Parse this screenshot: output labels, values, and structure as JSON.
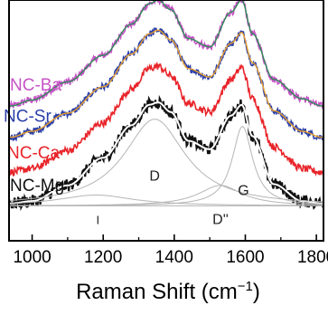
{
  "chart_data": {
    "type": "line",
    "title": "",
    "xlabel": "Raman Shift (cm−1)",
    "xlabel_parts": {
      "main": "Raman Shift (cm",
      "sup": "−1",
      "tail": ")"
    },
    "ylabel": "",
    "xlim": [
      935,
      1820
    ],
    "x_ticks": [
      1000,
      1200,
      1400,
      1600,
      1800
    ],
    "x_tick_labels": [
      "1000",
      "1200",
      "1400",
      "1600",
      "1800"
    ],
    "y_axis_visible": false,
    "grid": false,
    "legend": "none",
    "series": [
      {
        "name": "NC-Ba",
        "color": "#c653c6",
        "fit_color": "#2e8b57",
        "points": [
          [
            940,
            0.56
          ],
          [
            1000,
            0.585
          ],
          [
            1100,
            0.66
          ],
          [
            1200,
            0.77
          ],
          [
            1280,
            0.9
          ],
          [
            1330,
            0.985
          ],
          [
            1355,
            1.0
          ],
          [
            1390,
            0.96
          ],
          [
            1440,
            0.84
          ],
          [
            1500,
            0.805
          ],
          [
            1560,
            0.95
          ],
          [
            1590,
            1.0
          ],
          [
            1620,
            0.86
          ],
          [
            1680,
            0.67
          ],
          [
            1760,
            0.59
          ],
          [
            1815,
            0.56
          ]
        ]
      },
      {
        "name": "NC-Sr",
        "color": "#2b3fa8",
        "fit_color": "#e8a030",
        "points": [
          [
            940,
            0.43
          ],
          [
            1000,
            0.455
          ],
          [
            1100,
            0.53
          ],
          [
            1200,
            0.64
          ],
          [
            1280,
            0.775
          ],
          [
            1330,
            0.86
          ],
          [
            1355,
            0.875
          ],
          [
            1390,
            0.835
          ],
          [
            1440,
            0.715
          ],
          [
            1500,
            0.68
          ],
          [
            1560,
            0.82
          ],
          [
            1590,
            0.865
          ],
          [
            1620,
            0.74
          ],
          [
            1680,
            0.54
          ],
          [
            1760,
            0.455
          ],
          [
            1815,
            0.43
          ]
        ]
      },
      {
        "name": "NC-Ca",
        "color": "#e8242a",
        "fit_color": "",
        "points": [
          [
            940,
            0.285
          ],
          [
            1000,
            0.3
          ],
          [
            1100,
            0.375
          ],
          [
            1200,
            0.49
          ],
          [
            1280,
            0.63
          ],
          [
            1330,
            0.715
          ],
          [
            1355,
            0.725
          ],
          [
            1390,
            0.685
          ],
          [
            1440,
            0.57
          ],
          [
            1500,
            0.535
          ],
          [
            1560,
            0.67
          ],
          [
            1590,
            0.72
          ],
          [
            1620,
            0.59
          ],
          [
            1680,
            0.39
          ],
          [
            1760,
            0.3
          ],
          [
            1815,
            0.285
          ]
        ]
      },
      {
        "name": "NC-Mg",
        "color": "#111111",
        "fit_color": "#ffffff",
        "points": [
          [
            940,
            0.155
          ],
          [
            1000,
            0.165
          ],
          [
            1100,
            0.23
          ],
          [
            1200,
            0.345
          ],
          [
            1280,
            0.48
          ],
          [
            1330,
            0.565
          ],
          [
            1355,
            0.575
          ],
          [
            1390,
            0.535
          ],
          [
            1440,
            0.415
          ],
          [
            1500,
            0.38
          ],
          [
            1560,
            0.52
          ],
          [
            1590,
            0.565
          ],
          [
            1620,
            0.435
          ],
          [
            1680,
            0.235
          ],
          [
            1760,
            0.165
          ],
          [
            1815,
            0.155
          ]
        ]
      }
    ],
    "deconvolution": {
      "series": "NC-Mg",
      "color": "#b5b5b5",
      "baseline": 0.145,
      "peaks": [
        {
          "label": "D",
          "center": 1345,
          "fwhm": 210,
          "height": 0.36
        },
        {
          "label": "G",
          "center": 1592,
          "fwhm": 70,
          "height": 0.33
        },
        {
          "label": "D''",
          "center": 1530,
          "fwhm": 150,
          "height": 0.085
        },
        {
          "label": "I",
          "center": 1180,
          "fwhm": 260,
          "height": 0.045
        }
      ]
    }
  }
}
